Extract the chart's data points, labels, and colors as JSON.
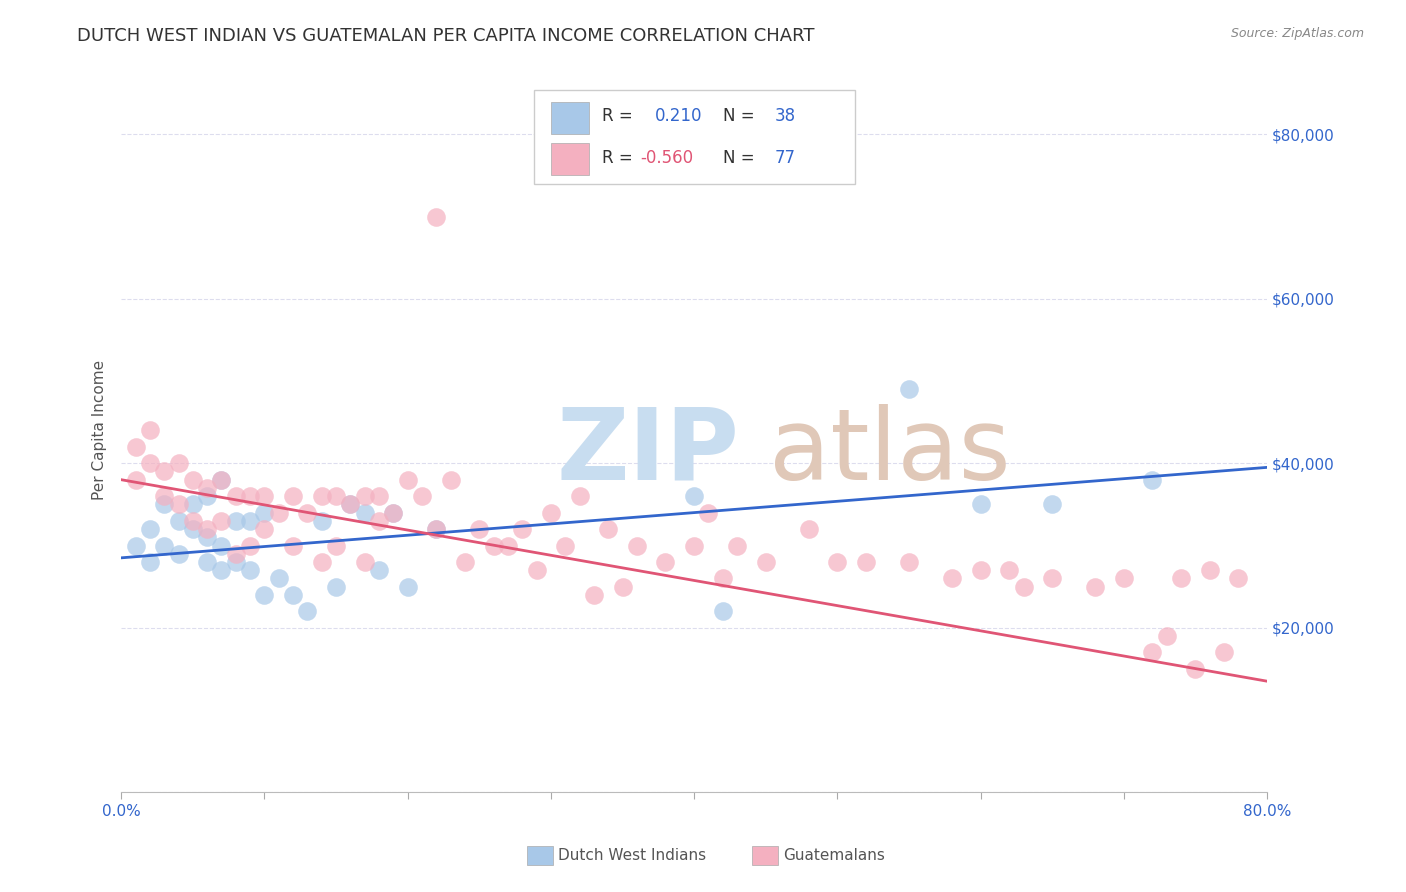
{
  "title": "DUTCH WEST INDIAN VS GUATEMALAN PER CAPITA INCOME CORRELATION CHART",
  "source": "Source: ZipAtlas.com",
  "ylabel": "Per Capita Income",
  "blue_color": "#a8c8e8",
  "pink_color": "#f4b0c0",
  "blue_line_color": "#3366cc",
  "pink_line_color": "#e05575",
  "blue_scatter_x": [
    0.01,
    0.02,
    0.02,
    0.03,
    0.03,
    0.04,
    0.04,
    0.05,
    0.05,
    0.06,
    0.06,
    0.06,
    0.07,
    0.07,
    0.07,
    0.08,
    0.08,
    0.09,
    0.09,
    0.1,
    0.1,
    0.11,
    0.12,
    0.13,
    0.14,
    0.15,
    0.16,
    0.17,
    0.18,
    0.19,
    0.2,
    0.22,
    0.4,
    0.42,
    0.55,
    0.6,
    0.65,
    0.72
  ],
  "blue_scatter_y": [
    30000,
    32000,
    28000,
    35000,
    30000,
    33000,
    29000,
    35000,
    32000,
    36000,
    31000,
    28000,
    38000,
    30000,
    27000,
    33000,
    28000,
    33000,
    27000,
    34000,
    24000,
    26000,
    24000,
    22000,
    33000,
    25000,
    35000,
    34000,
    27000,
    34000,
    25000,
    32000,
    36000,
    22000,
    49000,
    35000,
    35000,
    38000
  ],
  "pink_scatter_x": [
    0.01,
    0.01,
    0.02,
    0.02,
    0.03,
    0.03,
    0.04,
    0.04,
    0.05,
    0.05,
    0.06,
    0.06,
    0.07,
    0.07,
    0.08,
    0.08,
    0.09,
    0.09,
    0.1,
    0.1,
    0.11,
    0.12,
    0.12,
    0.13,
    0.14,
    0.14,
    0.15,
    0.15,
    0.16,
    0.17,
    0.17,
    0.18,
    0.18,
    0.19,
    0.2,
    0.21,
    0.22,
    0.23,
    0.24,
    0.25,
    0.26,
    0.27,
    0.28,
    0.29,
    0.3,
    0.31,
    0.32,
    0.33,
    0.34,
    0.35,
    0.36,
    0.38,
    0.4,
    0.41,
    0.42,
    0.43,
    0.45,
    0.48,
    0.5,
    0.52,
    0.55,
    0.58,
    0.6,
    0.62,
    0.63,
    0.65,
    0.68,
    0.7,
    0.72,
    0.73,
    0.74,
    0.75,
    0.76,
    0.77,
    0.78,
    0.22
  ],
  "pink_scatter_y": [
    42000,
    38000,
    40000,
    44000,
    39000,
    36000,
    40000,
    35000,
    38000,
    33000,
    37000,
    32000,
    38000,
    33000,
    36000,
    29000,
    36000,
    30000,
    36000,
    32000,
    34000,
    36000,
    30000,
    34000,
    36000,
    28000,
    36000,
    30000,
    35000,
    36000,
    28000,
    33000,
    36000,
    34000,
    38000,
    36000,
    32000,
    38000,
    28000,
    32000,
    30000,
    30000,
    32000,
    27000,
    34000,
    30000,
    36000,
    24000,
    32000,
    25000,
    30000,
    28000,
    30000,
    34000,
    26000,
    30000,
    28000,
    32000,
    28000,
    28000,
    28000,
    26000,
    27000,
    27000,
    25000,
    26000,
    25000,
    26000,
    17000,
    19000,
    26000,
    15000,
    27000,
    17000,
    26000,
    70000
  ],
  "blue_line_x0": 0.0,
  "blue_line_x1": 0.8,
  "blue_line_y0": 28500,
  "blue_line_y1": 39500,
  "pink_line_x0": 0.0,
  "pink_line_x1": 0.8,
  "pink_line_y0": 38000,
  "pink_line_y1": 13500,
  "background_color": "#ffffff",
  "grid_color": "#ddddee",
  "ylim": [
    0,
    88000
  ],
  "xlim": [
    0.0,
    0.8
  ],
  "yticks": [
    0,
    20000,
    40000,
    60000,
    80000
  ],
  "ytick_labels": [
    "",
    "$20,000",
    "$40,000",
    "$60,000",
    "$80,000"
  ],
  "watermark_zip_color": "#c8ddf0",
  "watermark_atlas_color": "#e0c8b8",
  "title_fontsize": 13,
  "source_fontsize": 9,
  "tick_fontsize": 11,
  "ylabel_fontsize": 11
}
